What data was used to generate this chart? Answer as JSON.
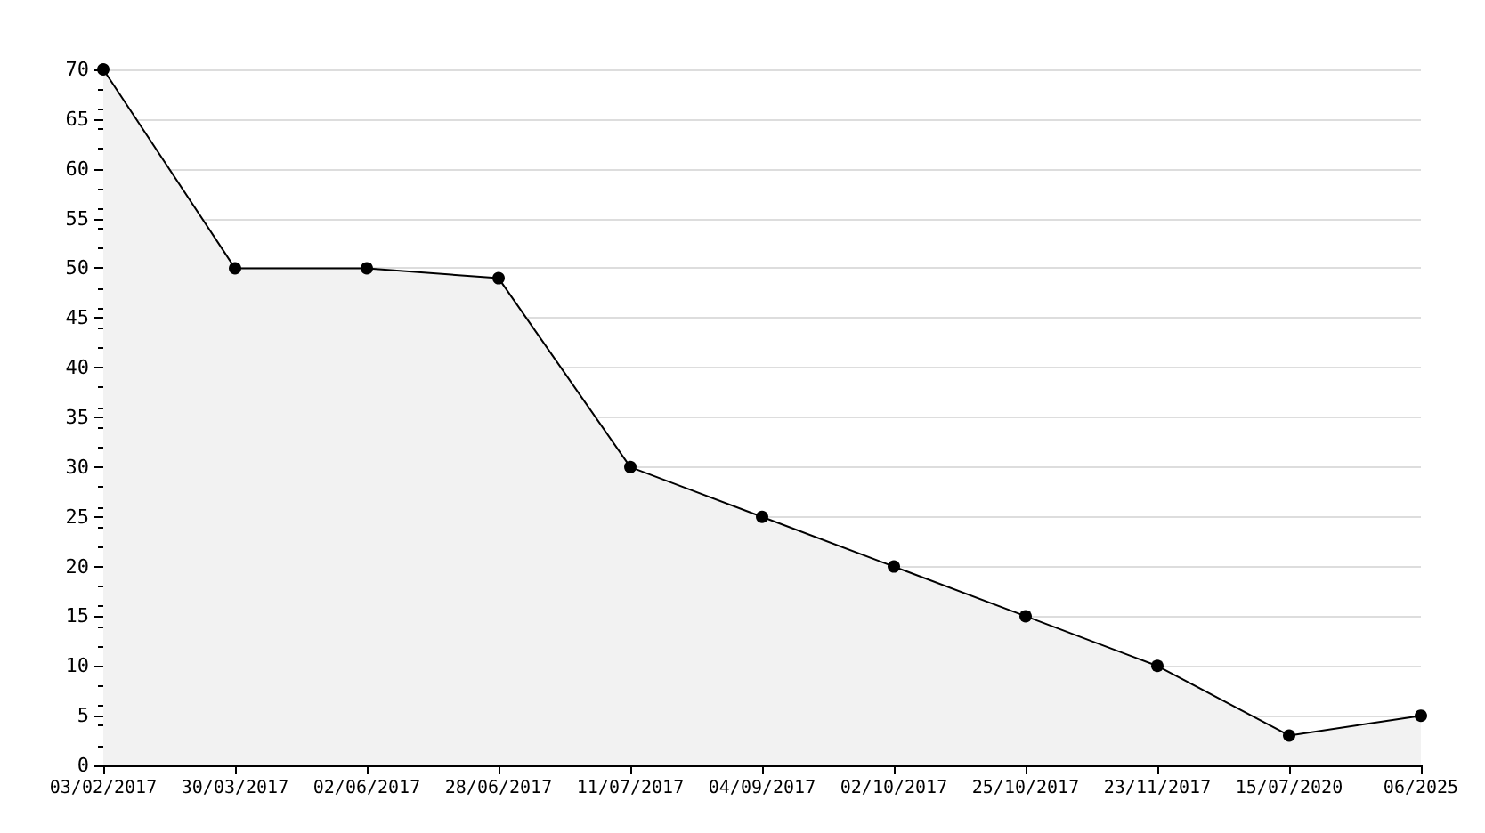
{
  "chart_data": {
    "type": "area",
    "categories": [
      "03/02/2017",
      "30/03/2017",
      "02/06/2017",
      "28/06/2017",
      "11/07/2017",
      "04/09/2017",
      "02/10/2017",
      "25/10/2017",
      "23/11/2017",
      "15/07/2020",
      "06/2025"
    ],
    "series": [
      {
        "color": "#000000",
        "values": [
          70,
          50,
          50,
          49,
          30,
          25,
          20,
          15,
          10,
          3,
          5
        ]
      }
    ],
    "ylim": [
      0,
      70
    ],
    "yticks": [
      0,
      5,
      10,
      15,
      20,
      25,
      30,
      35,
      40,
      45,
      50,
      55,
      60,
      65,
      70
    ],
    "grid": "y",
    "marker": "circle",
    "line_style": "solid"
  }
}
